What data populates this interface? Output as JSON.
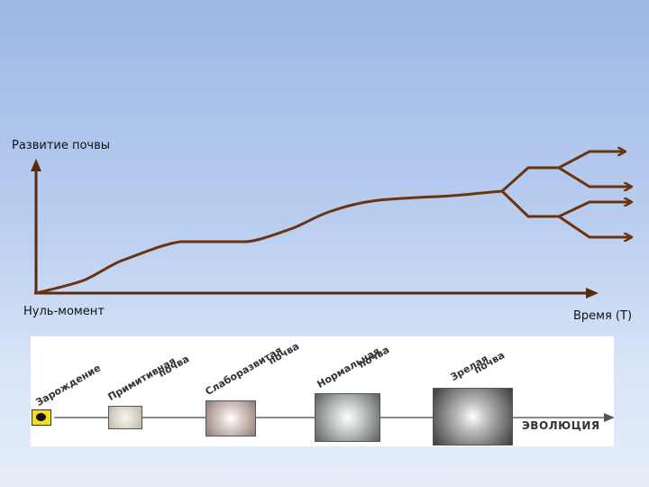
{
  "top_labels": {
    "y_axis": "Развитие почвы",
    "origin": "Нуль-момент",
    "x_axis": "Время (Т)"
  },
  "stages": {
    "s1": "Зарождение",
    "s2a": "Примитивная",
    "s2b": "почва",
    "s3a": "Слаборазвитая",
    "s3b": "почва",
    "s4a": "Нормальная",
    "s4b": "почва",
    "s5a": "Зрелая",
    "s5b": "почва",
    "evolution": "эволюция"
  },
  "colors": {
    "curve": "#6b3411",
    "axis": "#5a2c0e",
    "background_top": "#9db8e6",
    "background_bottom": "#e6eef9"
  }
}
